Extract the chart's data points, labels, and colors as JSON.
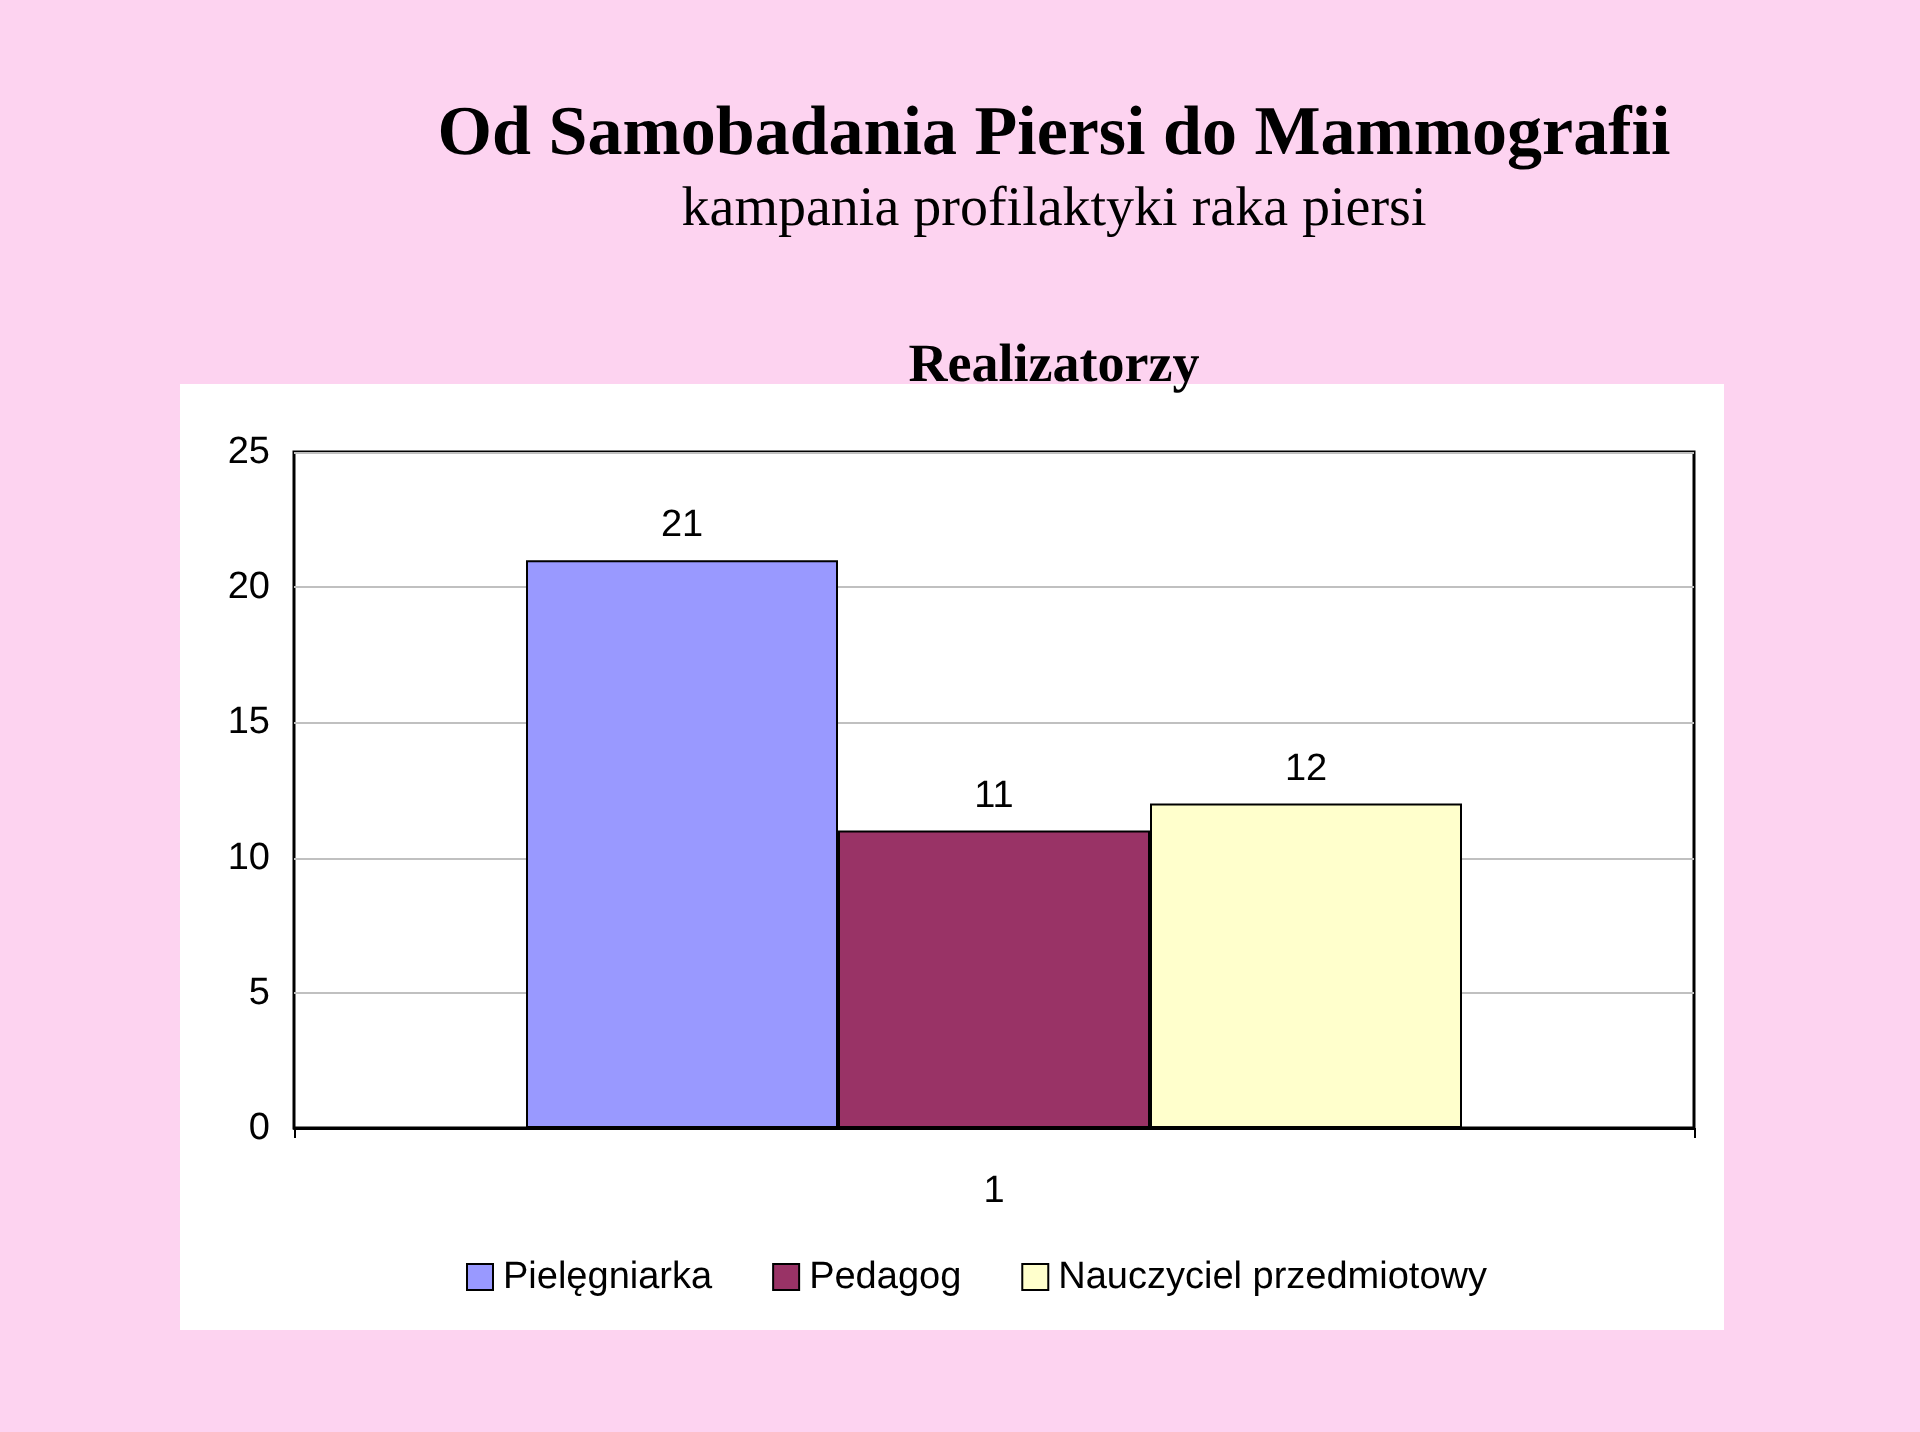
{
  "chart_data": {
    "type": "bar",
    "title": "Od Samobadania Piersi do Mammografii",
    "subtitle": "kampania profilaktyki raka piersi",
    "annotations": [
      "Realizatorzy"
    ],
    "categories": [
      "1"
    ],
    "series": [
      {
        "name": "Pielęgniarka",
        "color": "#9999ff",
        "values": [
          21
        ]
      },
      {
        "name": "Pedagog",
        "color": "#993366",
        "values": [
          11
        ]
      },
      {
        "name": "Nauczyciel przedmiotowy",
        "color": "#ffffcc",
        "values": [
          12
        ]
      }
    ],
    "ylim": [
      0,
      25
    ],
    "yticks": [
      0,
      5,
      10,
      15,
      20,
      25
    ],
    "grid": "y",
    "legend": "bottom",
    "data_labels": true
  }
}
